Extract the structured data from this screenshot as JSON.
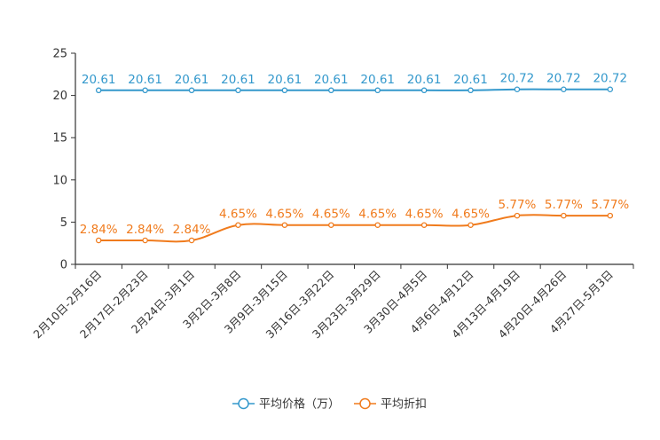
{
  "chart_data": {
    "type": "line",
    "categories": [
      "2月10日-2月16日",
      "2月17日-2月23日",
      "2月24日-3月1日",
      "3月2日-3月8日",
      "3月9日-3月15日",
      "3月16日-3月22日",
      "3月23日-3月29日",
      "3月30日-4月5日",
      "4月6日-4月12日",
      "4月13日-4月19日",
      "4月20日-4月26日",
      "4月27日-5月3日"
    ],
    "series": [
      {
        "name": "平均价格（万）",
        "color": "#3398cc",
        "values": [
          20.61,
          20.61,
          20.61,
          20.61,
          20.61,
          20.61,
          20.61,
          20.61,
          20.61,
          20.72,
          20.72,
          20.72
        ],
        "labels": [
          "20.61",
          "20.61",
          "20.61",
          "20.61",
          "20.61",
          "20.61",
          "20.61",
          "20.61",
          "20.61",
          "20.72",
          "20.72",
          "20.72"
        ]
      },
      {
        "name": "平均折扣",
        "color": "#f07b1d",
        "values": [
          2.84,
          2.84,
          2.84,
          4.65,
          4.65,
          4.65,
          4.65,
          4.65,
          4.65,
          5.77,
          5.77,
          5.77
        ],
        "labels": [
          "2.84%",
          "2.84%",
          "2.84%",
          "4.65%",
          "4.65%",
          "4.65%",
          "4.65%",
          "4.65%",
          "4.65%",
          "5.77%",
          "5.77%",
          "5.77%"
        ]
      }
    ],
    "ylim": [
      0,
      25
    ],
    "yticks": [
      "0",
      "5",
      "10",
      "15",
      "20",
      "25"
    ],
    "ytick_values": [
      0,
      5,
      10,
      15,
      20,
      25
    ],
    "legend_position": "bottom-center",
    "title": "",
    "xlabel": "",
    "ylabel": ""
  }
}
